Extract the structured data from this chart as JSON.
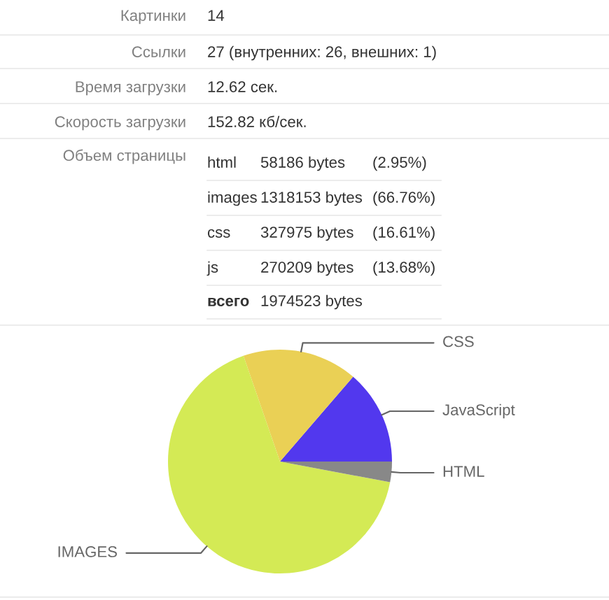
{
  "chart_data": [
    {
      "type": "other",
      "annotations": [
        "Картинки",
        "14",
        "Ссылки",
        "27 (внутренних: 26, внешних: 1)",
        "Время загрузки",
        "12.62 сек.",
        "Скорость загрузки",
        "152.82 кб/сек.",
        "Объем страницы",
        "html",
        "58186 bytes",
        "(2.95%)",
        "images",
        "1318153 bytes",
        "(66.76%)",
        "css",
        "327975 bytes",
        "(16.61%)",
        "js",
        "270209 bytes",
        "(13.68%)",
        "всего",
        "1974523 bytes"
      ]
    },
    {
      "type": "pie",
      "categories": [
        "JavaScript",
        "CSS",
        "IMAGES",
        "HTML"
      ],
      "values": [
        13.68,
        16.61,
        66.76,
        2.95
      ],
      "colors": [
        "#5238ee",
        "#ead055",
        "#d4ea55",
        "#888888"
      ]
    }
  ]
}
